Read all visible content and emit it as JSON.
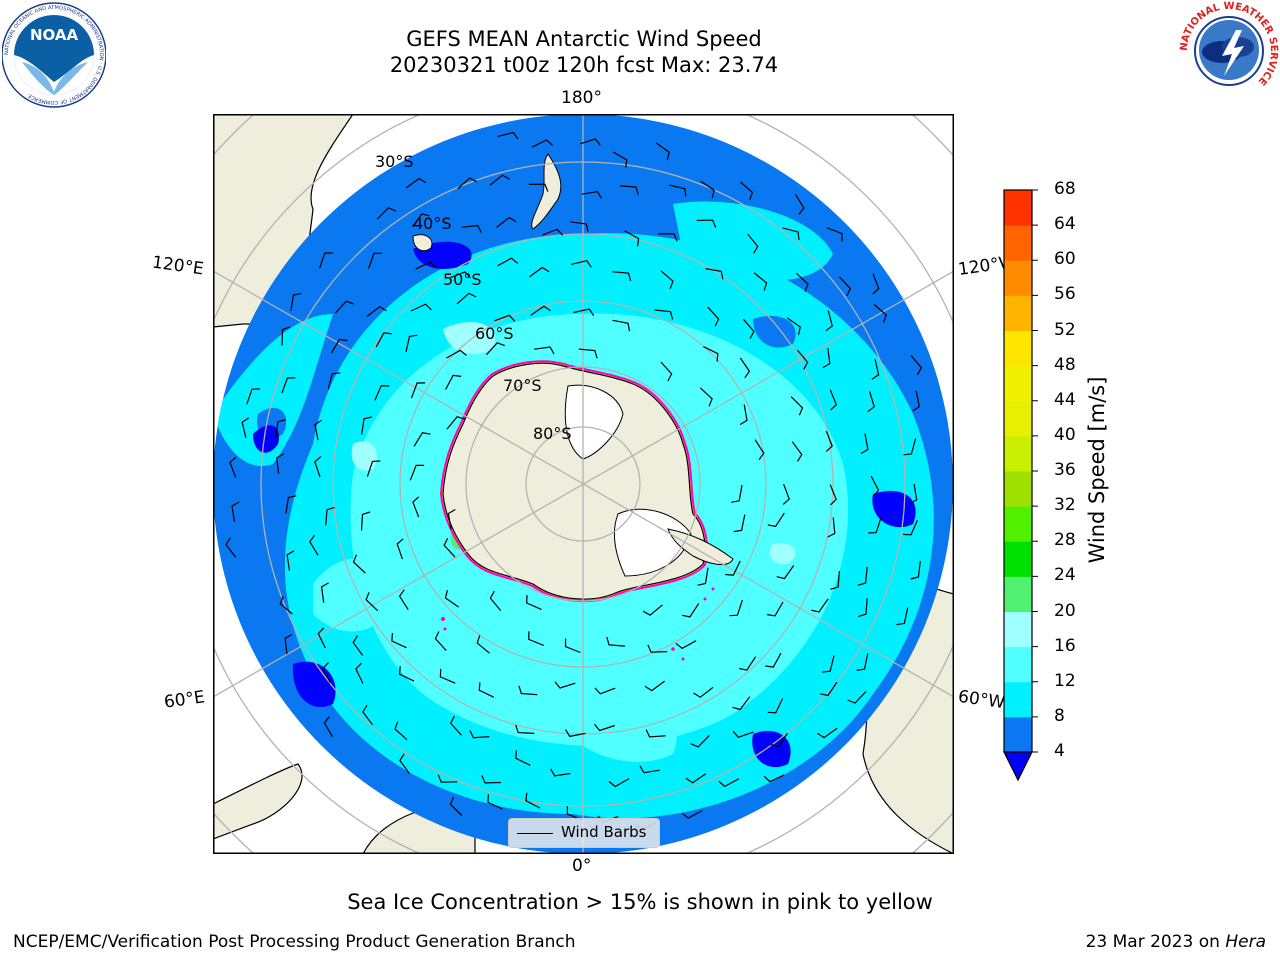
{
  "title_line1": "GEFS MEAN Antarctic Wind Speed",
  "title_line2": "20230321 t00z 120h fcst   Max: 23.74",
  "map": {
    "lon_labels": {
      "top": "180°",
      "bottom": "0°",
      "upper_left": "120°E",
      "upper_right": "120°W",
      "lower_left": "60°E",
      "lower_right": "60°W"
    },
    "lat_labels": [
      "30°S",
      "40°S",
      "50°S",
      "60°S",
      "70°S",
      "80°S"
    ],
    "legend_label": "Wind Barbs",
    "projection": "south-polar-stereographic"
  },
  "colorbar": {
    "label": "Wind Speed [m/s]",
    "ticks": [
      "68",
      "64",
      "60",
      "56",
      "52",
      "48",
      "44",
      "40",
      "36",
      "32",
      "28",
      "24",
      "20",
      "16",
      "12",
      "8",
      "4"
    ],
    "colors_bottom_to_top": [
      "#0a78f0",
      "#00f0ff",
      "#50ffff",
      "#a0ffff",
      "#50f070",
      "#00e000",
      "#50f000",
      "#a0e000",
      "#c8f000",
      "#e6f000",
      "#f0f000",
      "#ffe600",
      "#ffb400",
      "#ff8c00",
      "#ff6400",
      "#ff3200",
      "#ff0000"
    ],
    "under_color": "#0000ff"
  },
  "caption": "Sea Ice Concentration > 15% is shown in pink to yellow",
  "footer_left": "NCEP/EMC/Verification Post Processing Product Generation Branch",
  "footer_right_date": "23 Mar 2023 on",
  "footer_right_host": "Hera",
  "logos": {
    "noaa_text": "NOAA",
    "noaa_ring_text": "NATIONAL OCEANIC AND ATMOSPHERIC ADMINISTRATION · U.S. DEPARTMENT OF COMMERCE",
    "nws_ring_text": "NATIONAL WEATHER SERVICE"
  }
}
